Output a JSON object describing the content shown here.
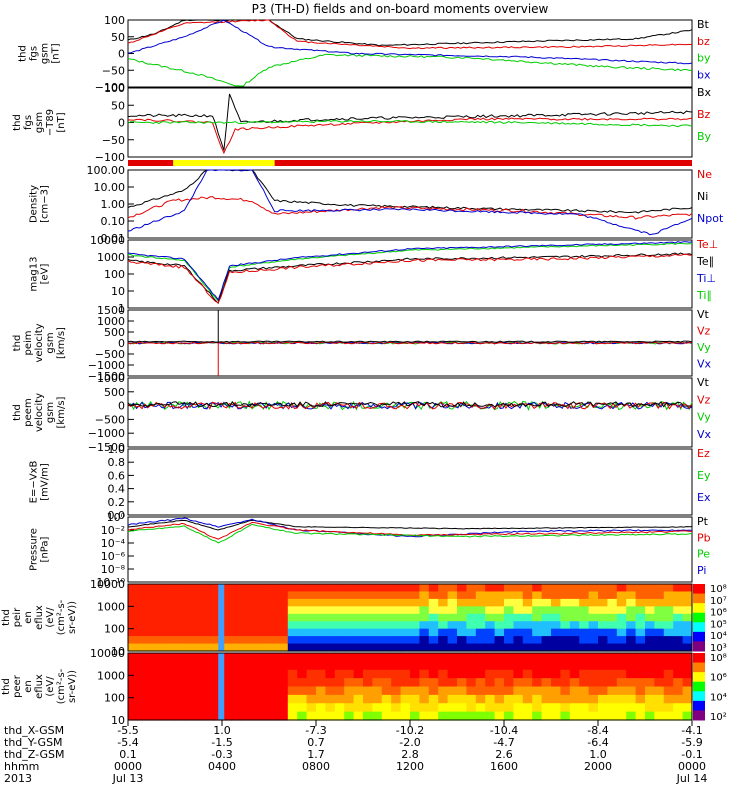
{
  "title": "P3 (TH-D) fields and on-board moments overview",
  "colors": {
    "black": "#000000",
    "red": "#e00000",
    "green": "#00cc00",
    "blue": "#0000d0",
    "yellow": "#ffff00"
  },
  "panels": [
    {
      "id": "fgs",
      "ylabel": [
        "thd",
        "fgs",
        "gsm",
        "[nT]"
      ],
      "yticks": [
        "100",
        "50",
        "0",
        "−50",
        "−100"
      ],
      "legend": [
        {
          "t": "Bt",
          "c": "black"
        },
        {
          "t": "bz",
          "c": "red"
        },
        {
          "t": "by",
          "c": "green"
        },
        {
          "t": "bx",
          "c": "blue"
        }
      ]
    },
    {
      "id": "fgs-m89",
      "ylabel": [
        "thd",
        "fgs",
        "gsm",
        "−T89",
        "[nT]"
      ],
      "yticks": [
        "100",
        "50",
        "0",
        "−50",
        "−100"
      ],
      "legend": [
        {
          "t": "Bx",
          "c": "black"
        },
        {
          "t": "Bz",
          "c": "red"
        },
        {
          "t": "By",
          "c": "green"
        }
      ]
    },
    {
      "id": "density",
      "ylabel": [
        "Density",
        "[cm−3]"
      ],
      "yticks": [
        "100.00",
        "10.00",
        "1.00",
        "0.10",
        "0.01"
      ],
      "legend": [
        {
          "t": "Ne",
          "c": "red"
        },
        {
          "t": "Ni",
          "c": "black"
        },
        {
          "t": "Npot",
          "c": "blue"
        }
      ]
    },
    {
      "id": "temp",
      "ylabel": [
        "mag13",
        "[eV]"
      ],
      "yticks": [
        "10000",
        "1000",
        "100",
        "10",
        "1"
      ],
      "legend": [
        {
          "t": "Te⊥",
          "c": "red"
        },
        {
          "t": "Te∥",
          "c": "black"
        },
        {
          "t": "Ti⊥",
          "c": "blue"
        },
        {
          "t": "Ti∥",
          "c": "green"
        }
      ]
    },
    {
      "id": "peim",
      "ylabel": [
        "thd",
        "peim",
        "velocity",
        "gsm",
        "[km/s]"
      ],
      "yticks": [
        "1500",
        "1000",
        "500",
        "0",
        "−500",
        "−1000",
        "−1500"
      ],
      "legend": [
        {
          "t": "Vt",
          "c": "black"
        },
        {
          "t": "Vz",
          "c": "red"
        },
        {
          "t": "Vy",
          "c": "green"
        },
        {
          "t": "Vx",
          "c": "blue"
        }
      ]
    },
    {
      "id": "peem",
      "ylabel": [
        "thd",
        "peem",
        "velocity",
        "gsm",
        "[km/s]"
      ],
      "yticks": [
        "1000",
        "500",
        "0",
        "−500",
        "−1000",
        "−1500"
      ],
      "legend": [
        {
          "t": "Vt",
          "c": "black"
        },
        {
          "t": "Vz",
          "c": "red"
        },
        {
          "t": "Vy",
          "c": "green"
        },
        {
          "t": "Vx",
          "c": "blue"
        }
      ]
    },
    {
      "id": "efield",
      "ylabel": [
        "E=−VxB",
        "[mV/m]"
      ],
      "yticks": [
        "1.0",
        "0.8",
        "0.6",
        "0.4",
        "0.2",
        "0.0"
      ],
      "legend": [
        {
          "t": "Ez",
          "c": "red"
        },
        {
          "t": "Ey",
          "c": "green"
        },
        {
          "t": "Ex",
          "c": "blue"
        }
      ]
    },
    {
      "id": "pressure",
      "ylabel": [
        "Pressure",
        "[nPa]"
      ],
      "yticks": [
        "10⁰",
        "10⁻²",
        "10⁻⁴",
        "10⁻⁶",
        "10⁻⁸",
        "10⁻¹⁰"
      ],
      "legend": [
        {
          "t": "Pt",
          "c": "black"
        },
        {
          "t": "Pb",
          "c": "red"
        },
        {
          "t": "Pe",
          "c": "green"
        },
        {
          "t": "Pi",
          "c": "blue"
        }
      ]
    },
    {
      "id": "peir",
      "ylabel": [
        "thd",
        "peir",
        "en",
        "eflux",
        "(eV/",
        "(cm²-s-",
        "sr-eV))"
      ],
      "yticks": [
        "10000",
        "1000",
        "100",
        "10"
      ],
      "colorbar": [
        "10⁸",
        "10⁷",
        "10⁶",
        "10⁵",
        "10⁴",
        "10³"
      ]
    },
    {
      "id": "peer",
      "ylabel": [
        "thd",
        "peer",
        "en",
        "eflux",
        "(eV/",
        "(cm²-s-",
        "sr-eV))"
      ],
      "yticks": [
        "10000",
        "1000",
        "100",
        "10"
      ],
      "colorbar": [
        "10⁸",
        "10⁶",
        "10⁴",
        "10²"
      ]
    }
  ],
  "xaxis": {
    "rows": [
      {
        "label": "thd_X-GSM",
        "values": [
          "-5.5",
          "1.0",
          "-7.3",
          "-10.2",
          "-10.4",
          "-8.4",
          "-4.1"
        ]
      },
      {
        "label": "thd_Y-GSM",
        "values": [
          "-5.4",
          "-1.5",
          "0.7",
          "-2.0",
          "-4.7",
          "-6.4",
          "-5.9"
        ]
      },
      {
        "label": "thd_Z-GSM",
        "values": [
          "0.1",
          "-0.3",
          "1.7",
          "2.8",
          "2.6",
          "1.0",
          "-0.1"
        ]
      },
      {
        "label": "hhmm",
        "values": [
          "0000",
          "0400",
          "0800",
          "1200",
          "1600",
          "2000",
          "0000"
        ]
      },
      {
        "label": "2013",
        "values": [
          "Jul 13",
          "",
          "",
          "",
          "",
          "",
          "Jul 14"
        ]
      }
    ]
  },
  "chart_data": {
    "type": "line",
    "x": [
      "0000",
      "0400",
      "0800",
      "1200",
      "1600",
      "2000",
      "0000"
    ],
    "series": [
      {
        "name": "Bt",
        "values": [
          45,
          100,
          35,
          35,
          50,
          60,
          80
        ]
      },
      {
        "name": "bz",
        "values": [
          40,
          100,
          25,
          20,
          25,
          30,
          40
        ]
      },
      {
        "name": "by",
        "values": [
          -20,
          -100,
          0,
          -10,
          -30,
          -50,
          -60
        ]
      },
      {
        "name": "bx",
        "values": [
          10,
          100,
          0,
          -10,
          -15,
          -20,
          -40
        ]
      }
    ],
    "ylim": [
      -100,
      100
    ]
  }
}
